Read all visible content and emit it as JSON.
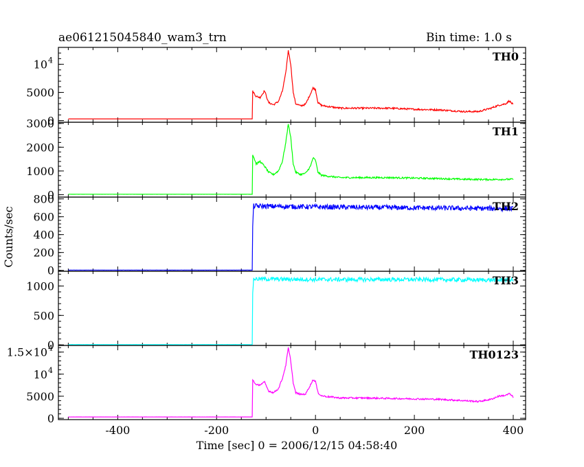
{
  "chart_data": {
    "type": "line",
    "title_left": "ae061215045840_wam3_trn",
    "title_right": "Bin time: 1.0 s",
    "xlabel": "Time [sec] 0 = 2006/12/15 04:58:40",
    "ylabel": "Counts/sec",
    "xlim": [
      -520,
      425
    ],
    "x_ticks": [
      "-400",
      "-200",
      "0",
      "200",
      "400"
    ],
    "x_tick_values": [
      -400,
      -200,
      0,
      200,
      400
    ],
    "panels": [
      {
        "name": "TH0",
        "color": "#ff0000",
        "ylim": [
          -300,
          13000
        ],
        "y_ticks": [
          {
            "value": 0,
            "label": "0"
          },
          {
            "value": 5000,
            "label": "5000"
          },
          {
            "value": 10000,
            "label": "10",
            "sup": "4"
          }
        ],
        "x": [
          -500,
          -128,
          -127,
          -120,
          -112,
          -103,
          -95,
          -85,
          -75,
          -67,
          -60,
          -55,
          -50,
          -45,
          -40,
          -30,
          -20,
          -10,
          -5,
          0,
          5,
          12,
          25,
          50,
          100,
          150,
          200,
          250,
          300,
          330,
          355,
          370,
          385,
          392,
          400
        ],
        "y": [
          300,
          300,
          5200,
          4300,
          4100,
          5300,
          3200,
          2800,
          3400,
          5200,
          8500,
          12500,
          10000,
          5000,
          3000,
          2600,
          2900,
          4800,
          5800,
          5500,
          3200,
          2700,
          2500,
          2200,
          2200,
          2200,
          2000,
          1900,
          1600,
          1600,
          2200,
          2700,
          3000,
          3500,
          2800
        ],
        "noise": 150
      },
      {
        "name": "TH1",
        "color": "#00ff00",
        "ylim": [
          -100,
          3050
        ],
        "y_ticks": [
          {
            "value": 0,
            "label": "0"
          },
          {
            "value": 1000,
            "label": "1000"
          },
          {
            "value": 2000,
            "label": "2000"
          },
          {
            "value": 3000,
            "label": "3000"
          }
        ],
        "x": [
          -500,
          -128,
          -127,
          -120,
          -112,
          -103,
          -95,
          -85,
          -75,
          -67,
          -60,
          -55,
          -50,
          -45,
          -40,
          -30,
          -20,
          -10,
          -5,
          0,
          5,
          12,
          25,
          50,
          100,
          150,
          200,
          250,
          300,
          350,
          400
        ],
        "y": [
          20,
          20,
          1700,
          1300,
          1400,
          1200,
          950,
          850,
          1000,
          1400,
          2200,
          3000,
          2400,
          1300,
          950,
          850,
          900,
          1200,
          1550,
          1450,
          950,
          820,
          780,
          720,
          720,
          720,
          700,
          680,
          650,
          640,
          650
        ],
        "noise": 35
      },
      {
        "name": "TH2",
        "color": "#0000ff",
        "ylim": [
          -10,
          820
        ],
        "y_ticks": [
          {
            "value": 0,
            "label": "0"
          },
          {
            "value": 200,
            "label": "200"
          },
          {
            "value": 400,
            "label": "400"
          },
          {
            "value": 600,
            "label": "600"
          },
          {
            "value": 800,
            "label": "800"
          }
        ],
        "x": [
          -500,
          -128,
          -127,
          -125,
          0,
          200,
          400
        ],
        "y": [
          3,
          3,
          500,
          720,
          710,
          700,
          690
        ],
        "noise": 28
      },
      {
        "name": "TH3",
        "color": "#00ffff",
        "ylim": [
          -10,
          1250
        ],
        "y_ticks": [
          {
            "value": 0,
            "label": "0"
          },
          {
            "value": 500,
            "label": "500"
          },
          {
            "value": 1000,
            "label": "1000"
          }
        ],
        "x": [
          -500,
          -128,
          -127,
          -125,
          0,
          200,
          400
        ],
        "y": [
          5,
          5,
          900,
          1120,
          1110,
          1110,
          1100
        ],
        "noise": 35
      },
      {
        "name": "TH0123",
        "color": "#ff00ff",
        "ylim": [
          -300,
          16500
        ],
        "y_ticks": [
          {
            "value": 0,
            "label": "0"
          },
          {
            "value": 5000,
            "label": "5000"
          },
          {
            "value": 10000,
            "label": "10",
            "sup": "4"
          },
          {
            "value": 15000,
            "label": "1.5×10",
            "sup": "4"
          }
        ],
        "x": [
          -500,
          -128,
          -127,
          -120,
          -112,
          -103,
          -95,
          -85,
          -75,
          -67,
          -60,
          -55,
          -50,
          -45,
          -40,
          -30,
          -20,
          -10,
          -5,
          0,
          5,
          12,
          25,
          50,
          100,
          150,
          200,
          250,
          300,
          330,
          355,
          370,
          385,
          392,
          400
        ],
        "y": [
          300,
          300,
          8800,
          7500,
          7600,
          8200,
          6200,
          5800,
          6700,
          9000,
          12000,
          16000,
          13000,
          8000,
          5800,
          5400,
          5500,
          7600,
          8700,
          8400,
          5800,
          5100,
          4900,
          4600,
          4600,
          4500,
          4400,
          4300,
          4000,
          3800,
          4300,
          5000,
          5200,
          5600,
          4800
        ],
        "noise": 180
      }
    ]
  }
}
